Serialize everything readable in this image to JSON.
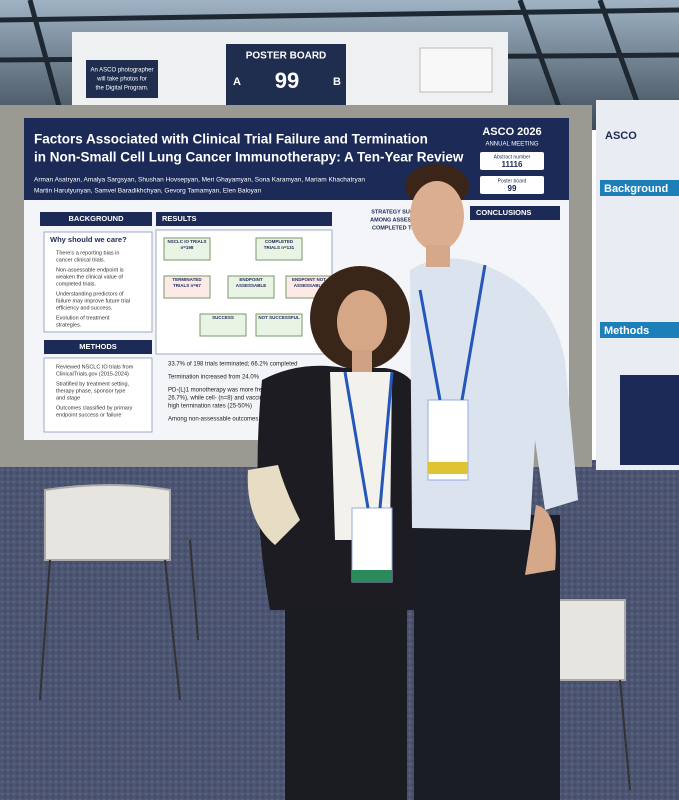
{
  "sign": {
    "notice": [
      "An ASCO photographer",
      "will take photos for",
      "the Digital Program."
    ],
    "board_label": "POSTER BOARD",
    "side_a": "A",
    "number": "99",
    "side_b": "B"
  },
  "poster": {
    "title": [
      "Factors Associated with Clinical Trial Failure and Termination",
      "in Non-Small Cell Lung Cancer Immunotherapy: A Ten-Year Review"
    ],
    "meeting": "ASCO 2026",
    "meeting_sub": "ANNUAL MEETING",
    "abstract_label": "Abstract number",
    "abstract_number": "11116",
    "board_label": "Poster board",
    "board_number": "99",
    "authors": [
      "Arman Asatryan, Amalya Sargsyan, Shushan Hovsepyan, Meri Ghayamyan, Sona Karamyan, Mariam Khachatryan",
      "Martin Harutyunyan, Samvel Baradikhchyan, Gevorg Tamamyan, Elen Baloyan"
    ],
    "background": {
      "header": "BACKGROUND",
      "question": "Why should we care?",
      "bullets": [
        [
          "There's a reporting bias in",
          "cancer clinical trials."
        ],
        [
          "Non-assessable endpoint is",
          "weaken the clinical value of",
          "completed trials."
        ],
        [
          "Understanding predictors of",
          "failure may improve future trial",
          "efficiency and success."
        ],
        [
          "Evolution of treatment",
          "strategies."
        ]
      ]
    },
    "methods": {
      "header": "METHODS",
      "bullets": [
        [
          "Reviewed NSCLC IO trials from",
          "ClinicalTrials.gov (2015-2024)"
        ],
        [
          "Stratified by treatment setting,",
          "therapy phase, sponsor type",
          "and stage"
        ],
        [
          "Outcomes classified by primary",
          "endpoint success or failure"
        ]
      ]
    },
    "results": {
      "header": "RESULTS",
      "findings": [
        "33.7% of 198 trials terminated; 66.2% completed",
        "Termination increased from 24.0%",
        "PD-(L)1 monotherapy was more frequent",
        "26.7%), while cell- (n=8) and vaccine",
        "high termination rates (25-50%)",
        "Among non-assessable outcomes"
      ],
      "flow": [
        "NSCLC IO TRIALS n=198",
        "COMPLETED TRIALS n=131",
        "TERMINATED TRIALS n=67",
        "ENDPOINT ASSESSABLE",
        "ENDPOINT NOT ASSESSABLE",
        "SUCCESS",
        "NOT SUCCESSFUL"
      ]
    },
    "strategy": [
      "STRATEGY SUCCESS",
      "AMONG ASSESSABLE",
      "COMPLETED TRIALS"
    ],
    "conclusions": {
      "header": "CONCLUSIONS"
    }
  },
  "side_poster": {
    "brand": "ASCO",
    "background": "Background",
    "methods": "Methods"
  }
}
